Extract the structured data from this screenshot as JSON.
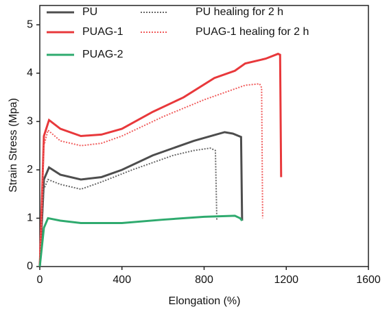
{
  "chart_data": {
    "type": "line",
    "xlabel": "Elongation (%)",
    "ylabel": "Strain Stress (Mpa)",
    "xlim": [
      0,
      1600
    ],
    "ylim": [
      0,
      5.4
    ],
    "xticks": [
      0,
      400,
      800,
      1200,
      1600
    ],
    "yticks": [
      0,
      1,
      2,
      3,
      4,
      5
    ],
    "series": [
      {
        "name": "PU",
        "color": "#4d4d4d",
        "dashed": false,
        "x": [
          0,
          20,
          45,
          100,
          200,
          300,
          400,
          550,
          650,
          750,
          850,
          900,
          940,
          980,
          985
        ],
        "values": [
          0,
          1.8,
          2.05,
          1.9,
          1.8,
          1.85,
          2.0,
          2.3,
          2.45,
          2.6,
          2.72,
          2.78,
          2.75,
          2.68,
          0.95
        ]
      },
      {
        "name": "PU healing  for 2 h",
        "color": "#666666",
        "dashed": true,
        "x": [
          0,
          20,
          40,
          100,
          200,
          300,
          450,
          550,
          650,
          750,
          830,
          855,
          862
        ],
        "values": [
          0,
          1.6,
          1.8,
          1.7,
          1.6,
          1.75,
          2.0,
          2.15,
          2.3,
          2.4,
          2.45,
          2.4,
          0.95
        ]
      },
      {
        "name": "PUAG-1",
        "color": "#e8383b",
        "dashed": false,
        "x": [
          0,
          20,
          45,
          100,
          200,
          300,
          400,
          550,
          700,
          850,
          950,
          1000,
          1100,
          1160,
          1170,
          1175
        ],
        "values": [
          0,
          2.7,
          3.03,
          2.85,
          2.7,
          2.73,
          2.85,
          3.2,
          3.5,
          3.9,
          4.05,
          4.2,
          4.3,
          4.4,
          4.38,
          1.85
        ]
      },
      {
        "name": "PUAG-1 healing for 2 h",
        "color": "#f05a5a",
        "dashed": true,
        "x": [
          0,
          20,
          40,
          100,
          200,
          300,
          400,
          600,
          800,
          900,
          1000,
          1070,
          1080,
          1085
        ],
        "values": [
          0,
          2.5,
          2.82,
          2.6,
          2.5,
          2.55,
          2.7,
          3.1,
          3.45,
          3.6,
          3.75,
          3.78,
          3.7,
          1.0
        ]
      },
      {
        "name": "PUAG-2",
        "color": "#2eaa6e",
        "dashed": false,
        "x": [
          0,
          20,
          40,
          100,
          200,
          400,
          600,
          800,
          950,
          975,
          985
        ],
        "values": [
          0,
          0.8,
          1.0,
          0.95,
          0.9,
          0.9,
          0.97,
          1.03,
          1.05,
          1.0,
          0.95
        ]
      }
    ]
  }
}
